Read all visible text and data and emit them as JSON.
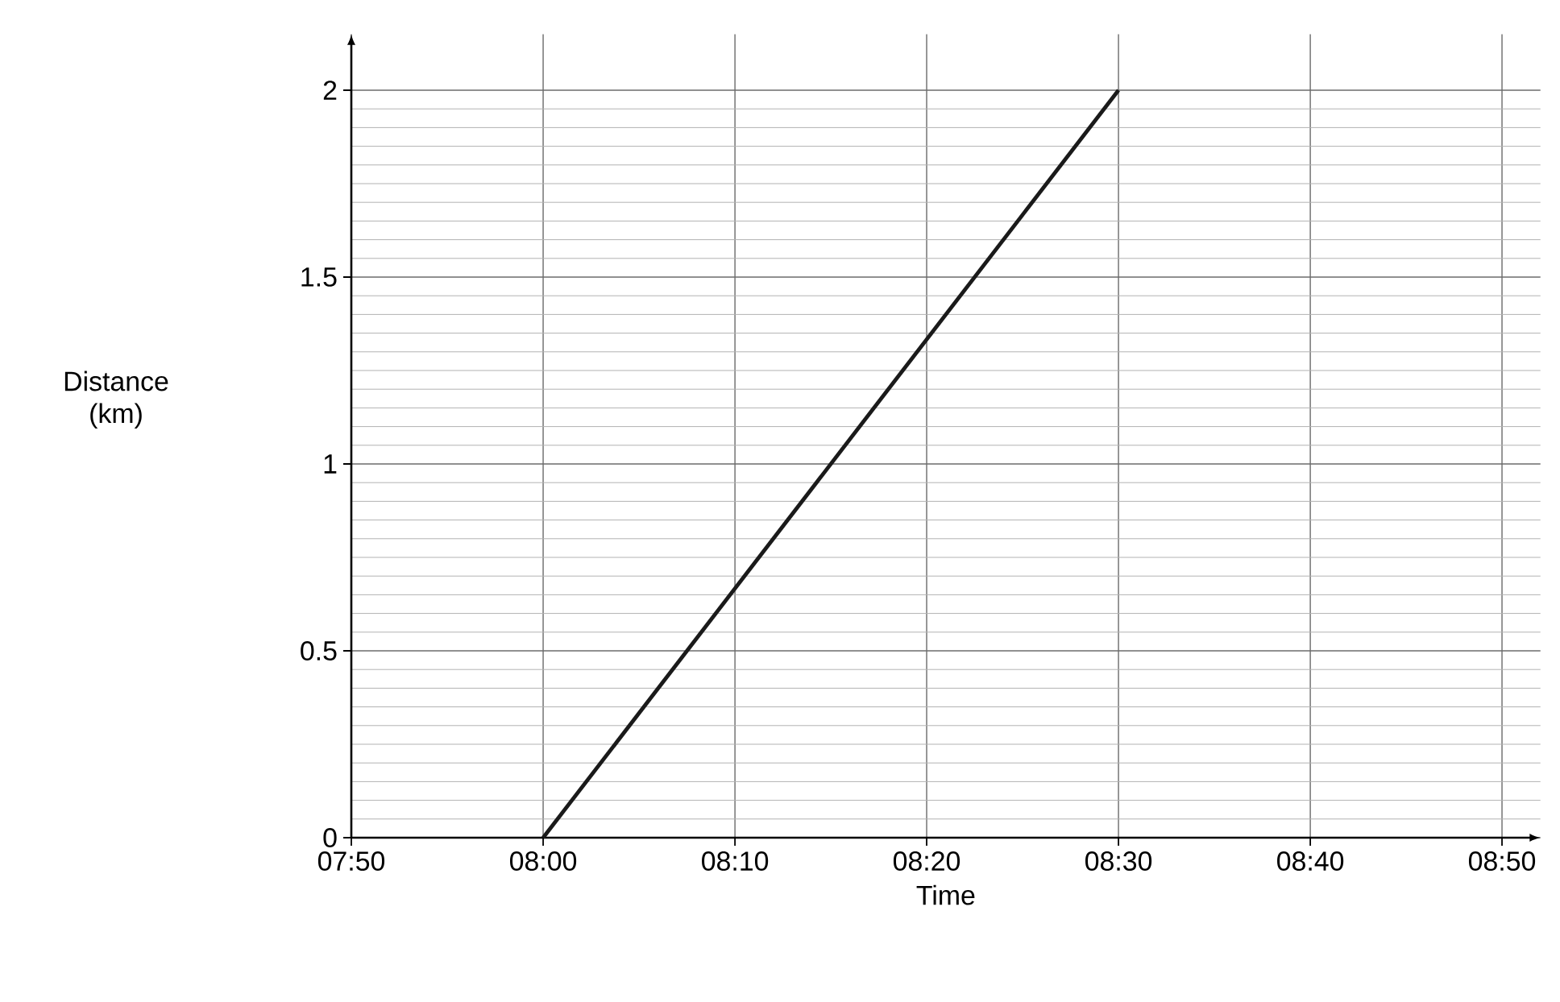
{
  "chart_data": {
    "type": "line",
    "xlabel": "Time",
    "ylabel": "Distance (km)",
    "x": [
      8.0,
      8.5
    ],
    "series": [
      {
        "color": "#1a1a1a",
        "values": [
          0,
          2
        ]
      }
    ],
    "xlim": [
      7.8333,
      8.8667
    ],
    "ylim": [
      0,
      2.15
    ],
    "xticks": [
      {
        "value": 7.8333,
        "label": "07:50"
      },
      {
        "value": 8.0,
        "label": "08:00"
      },
      {
        "value": 8.1667,
        "label": "08:10"
      },
      {
        "value": 8.3333,
        "label": "08:20"
      },
      {
        "value": 8.5,
        "label": "08:30"
      },
      {
        "value": 8.6667,
        "label": "08:40"
      },
      {
        "value": 8.8333,
        "label": "08:50"
      }
    ],
    "yticks": [
      0,
      0.5,
      1,
      1.5,
      2
    ],
    "grid": true
  }
}
